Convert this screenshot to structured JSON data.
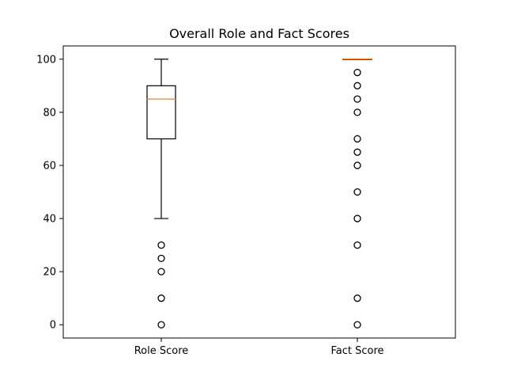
{
  "chart_data": {
    "type": "boxplot",
    "title": "Overall Role and Fact Scores",
    "xlabel": "",
    "ylabel": "",
    "ylim": [
      -5,
      105
    ],
    "yticks": [
      0,
      20,
      40,
      60,
      80,
      100
    ],
    "ytick_labels": [
      "0",
      "20",
      "40",
      "60",
      "80",
      "100"
    ],
    "grid": false,
    "colors": {
      "box": "#000000",
      "median": "#ff7f0e",
      "flier": "#000000",
      "axes": "#000000",
      "background": "#ffffff"
    },
    "categories": [
      "Role Score",
      "Fact Score"
    ],
    "boxes": [
      {
        "label": "Role Score",
        "whisker_low": 40,
        "q1": 70,
        "median": 85,
        "q3": 90,
        "whisker_high": 100,
        "fliers": [
          30,
          25,
          20,
          10,
          0
        ]
      },
      {
        "label": "Fact Score",
        "whisker_low": 100,
        "q1": 100,
        "median": 100,
        "q3": 100,
        "whisker_high": 100,
        "fliers": [
          95,
          90,
          85,
          80,
          70,
          65,
          60,
          50,
          40,
          30,
          10,
          0
        ]
      }
    ]
  }
}
